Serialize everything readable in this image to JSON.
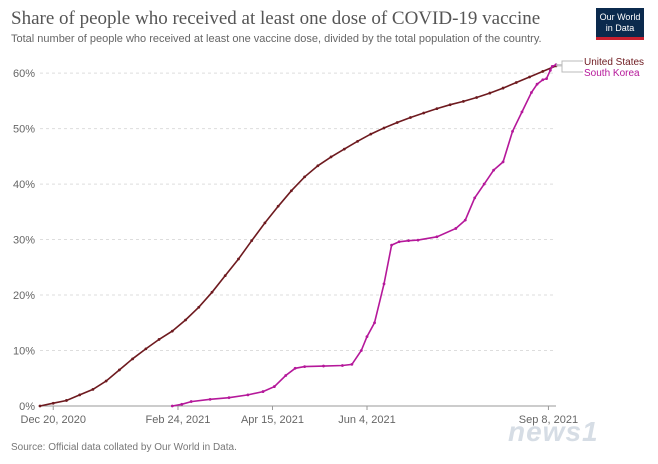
{
  "logo": {
    "line1": "Our World",
    "line2": "in Data"
  },
  "watermark": "news1",
  "colors": {
    "us": "#6e1a1f",
    "kr": "#b5189a",
    "grid": "#dddddd",
    "axis": "#999999"
  },
  "chart_data": {
    "type": "line",
    "title": "Share of people who received at least one dose of COVID-19 vaccine",
    "subtitle": "Total number of people who received at least one vaccine dose, divided by the total population of the country.",
    "source": "Source: Official data collated by Our World in Data.",
    "xlabel": "",
    "ylabel": "",
    "x_unit": "days since Dec 13, 2020",
    "xlim": [
      0,
      273
    ],
    "ylim": [
      0,
      62
    ],
    "yticks": [
      0,
      10,
      20,
      30,
      40,
      50,
      60
    ],
    "ytick_labels": [
      "0%",
      "10%",
      "20%",
      "30%",
      "40%",
      "50%",
      "60%"
    ],
    "xticks": [
      7,
      73,
      123,
      173,
      269
    ],
    "xtick_labels": [
      "Dec 20, 2020",
      "Feb 24, 2021",
      "Apr 15, 2021",
      "Jun 4, 2021",
      "Sep 8, 2021"
    ],
    "legend": [
      "United States",
      "South Korea"
    ],
    "series": [
      {
        "name": "United States",
        "x": [
          0,
          7,
          14,
          21,
          28,
          35,
          42,
          49,
          56,
          63,
          70,
          77,
          84,
          91,
          98,
          105,
          112,
          119,
          126,
          133,
          140,
          147,
          154,
          161,
          168,
          175,
          182,
          189,
          196,
          203,
          210,
          217,
          224,
          231,
          238,
          245,
          252,
          259,
          266,
          273
        ],
        "y": [
          0,
          0.5,
          1.0,
          2.0,
          3.0,
          4.5,
          6.5,
          8.5,
          10.3,
          12.0,
          13.5,
          15.5,
          17.8,
          20.5,
          23.5,
          26.5,
          29.8,
          33.0,
          36.0,
          38.8,
          41.3,
          43.3,
          44.9,
          46.3,
          47.7,
          49.0,
          50.1,
          51.1,
          52.0,
          52.8,
          53.6,
          54.3,
          54.9,
          55.6,
          56.4,
          57.3,
          58.3,
          59.3,
          60.3,
          61.3
        ]
      },
      {
        "name": "South Korea",
        "x": [
          70,
          75,
          80,
          90,
          100,
          110,
          118,
          124,
          130,
          135,
          140,
          150,
          160,
          165,
          170,
          173,
          177,
          182,
          186,
          190,
          195,
          200,
          210,
          220,
          225,
          230,
          235,
          240,
          245,
          250,
          255,
          260,
          263,
          266,
          268,
          270,
          271,
          273
        ],
        "y": [
          0,
          0.3,
          0.8,
          1.2,
          1.5,
          2.0,
          2.6,
          3.5,
          5.5,
          6.8,
          7.1,
          7.2,
          7.3,
          7.5,
          10.0,
          12.5,
          15.0,
          22.0,
          29.0,
          29.6,
          29.8,
          29.9,
          30.5,
          32.0,
          33.5,
          37.5,
          40.0,
          42.5,
          44.0,
          49.5,
          53.0,
          56.5,
          58.0,
          58.8,
          59.0,
          60.5,
          61.2,
          61.5
        ]
      }
    ]
  }
}
